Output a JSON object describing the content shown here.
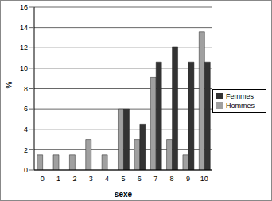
{
  "chart_data": {
    "type": "bar",
    "x_label": "sexe",
    "y_label": "%",
    "categories": [
      "0",
      "1",
      "2",
      "3",
      "4",
      "5",
      "6",
      "7",
      "8",
      "9",
      "10"
    ],
    "series": [
      {
        "name": "Hommes",
        "color": "#a0a0a0",
        "values": [
          1.5,
          1.5,
          1.5,
          3,
          1.5,
          6,
          3,
          9.1,
          3,
          1.5,
          13.6
        ]
      },
      {
        "name": "Femmes",
        "color": "#333333",
        "values": [
          0,
          0,
          0,
          0,
          0,
          6,
          4.5,
          10.6,
          12.1,
          10.6,
          10.6
        ]
      }
    ],
    "ylim": [
      0,
      16
    ],
    "yticks": [
      0,
      2,
      4,
      6,
      8,
      10,
      12,
      14,
      16
    ],
    "grid": true,
    "legend": "right"
  }
}
